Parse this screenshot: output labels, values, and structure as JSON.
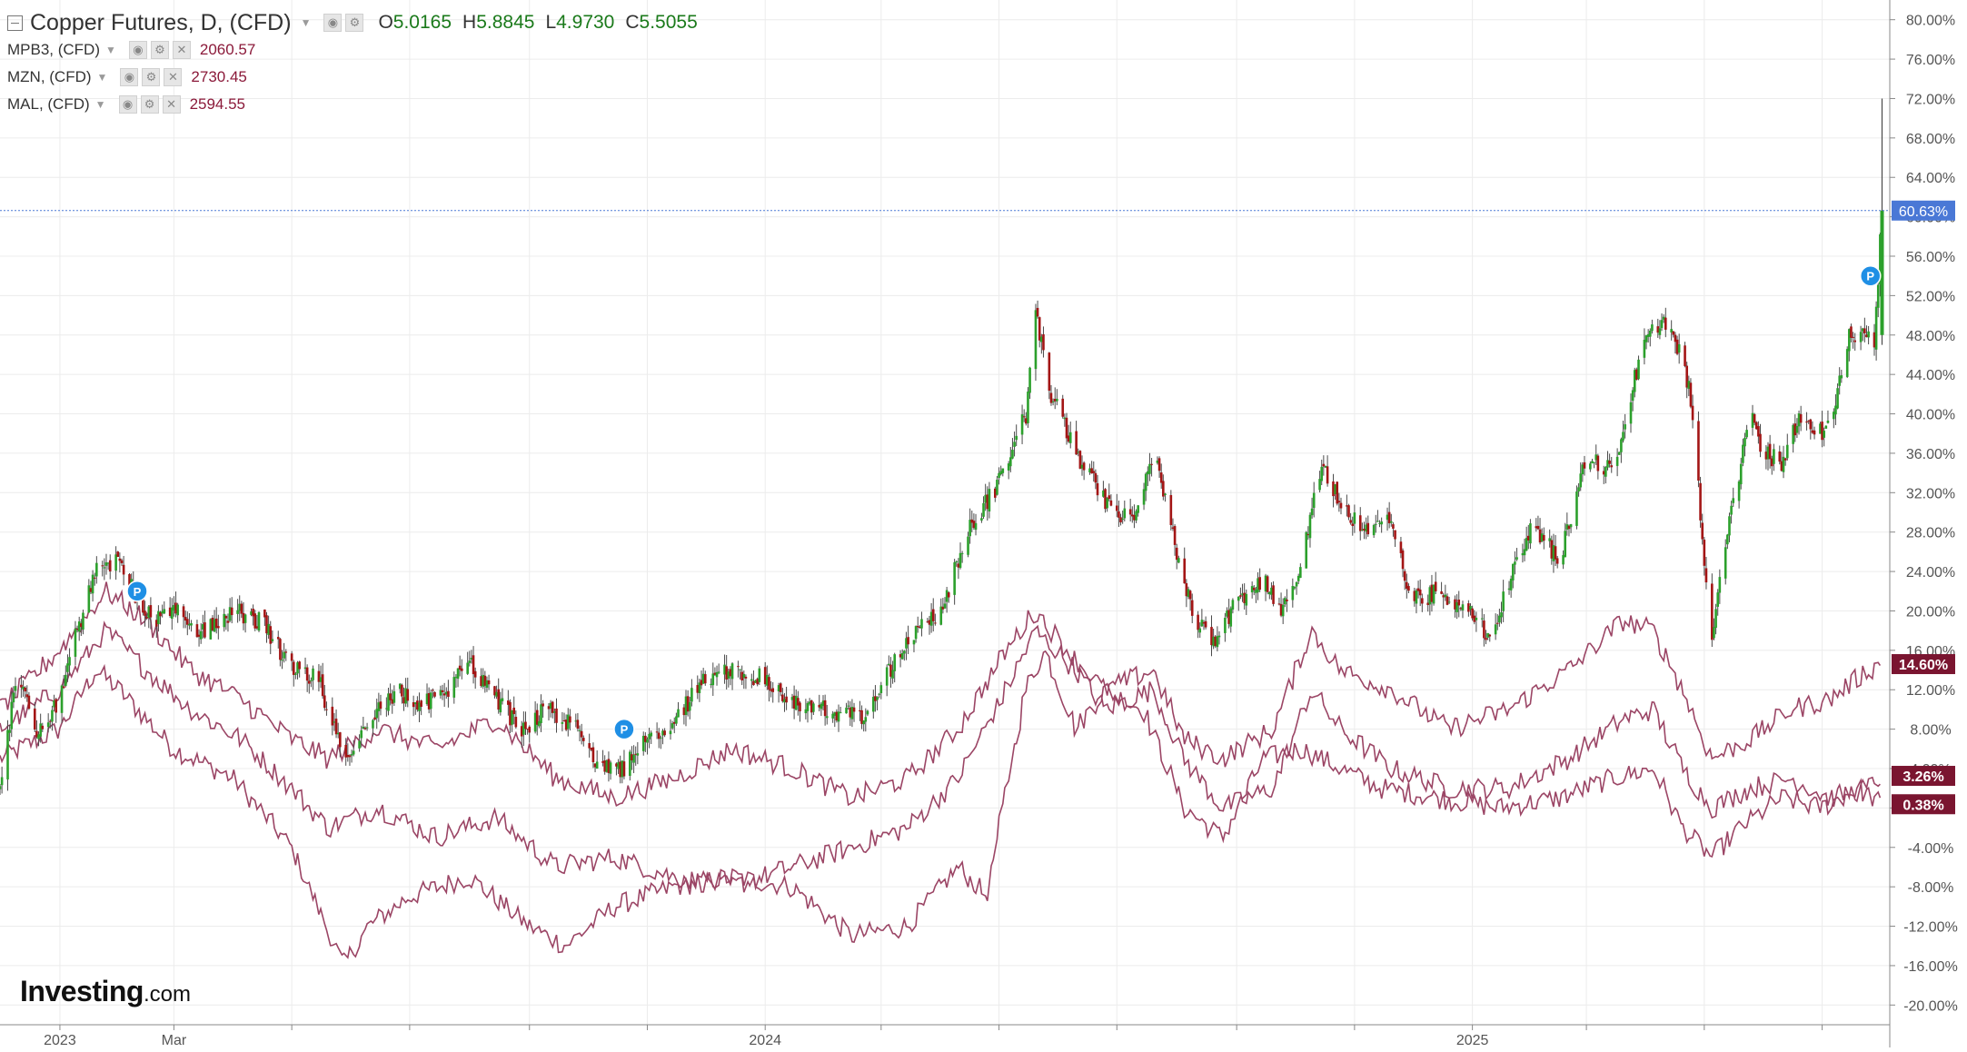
{
  "legend": {
    "main": {
      "title": "Copper Futures, D, (CFD)",
      "open_key": "O",
      "open": "5.0165",
      "high_key": "H",
      "high": "5.8845",
      "low_key": "L",
      "low": "4.9730",
      "close_key": "C",
      "close": "5.5055"
    },
    "subs": [
      {
        "title": "MPB3, (CFD)",
        "value": "2060.57"
      },
      {
        "title": "MZN, (CFD)",
        "value": "2730.45"
      },
      {
        "title": "MAL, (CFD)",
        "value": "2594.55"
      }
    ]
  },
  "logo": {
    "main": "Investing",
    "domain": ".com"
  },
  "colors": {
    "up": "#2ca02c",
    "down": "#a31515",
    "wick": "#4a4a4a",
    "compare": "#9b4565",
    "badge": "#7a1530",
    "price_label": "#4a78d6",
    "grid": "#ececec",
    "axis_text": "#555555",
    "pin": "#1f8fe5"
  },
  "chart_data": {
    "type": "candlestick",
    "y_unit": "%",
    "ylim": [
      -22,
      82
    ],
    "y_ticks": [
      "80.00%",
      "76.00%",
      "72.00%",
      "68.00%",
      "64.00%",
      "60.00%",
      "56.00%",
      "52.00%",
      "48.00%",
      "44.00%",
      "40.00%",
      "36.00%",
      "32.00%",
      "28.00%",
      "24.00%",
      "20.00%",
      "16.00%",
      "12.00%",
      "8.00%",
      "4.00%",
      "0.00%",
      "-4.00%",
      "-8.00%",
      "-12.00%",
      "-16.00%",
      "-20.00%"
    ],
    "x_labels": [
      "2023",
      "Mar",
      "2024",
      "2025"
    ],
    "x_ticks_minor": [
      "2023-01",
      "2023-03",
      "2023-05",
      "2023-07",
      "2023-09",
      "2023-11",
      "2024-01",
      "2024-03",
      "2024-05",
      "2024-07",
      "2024-09",
      "2024-11",
      "2025-01",
      "2025-03",
      "2025-05",
      "2025-07"
    ],
    "x_range": [
      "2022-12-01",
      "2025-08-05"
    ],
    "grid": true,
    "current_value_label": "60.63%",
    "current_value": 60.63,
    "copper_path": [
      [
        "2022-12-01",
        2
      ],
      [
        "2022-12-10",
        14
      ],
      [
        "2022-12-20",
        8
      ],
      [
        "2023-01-01",
        11
      ],
      [
        "2023-01-10",
        18
      ],
      [
        "2023-01-20",
        24
      ],
      [
        "2023-02-01",
        25
      ],
      [
        "2023-02-10",
        21
      ],
      [
        "2023-02-20",
        19
      ],
      [
        "2023-03-01",
        20
      ],
      [
        "2023-03-15",
        18
      ],
      [
        "2023-04-01",
        20
      ],
      [
        "2023-04-15",
        19
      ],
      [
        "2023-05-01",
        14
      ],
      [
        "2023-05-15",
        13
      ],
      [
        "2023-05-28",
        5
      ],
      [
        "2023-06-10",
        9
      ],
      [
        "2023-06-25",
        12
      ],
      [
        "2023-07-05",
        10
      ],
      [
        "2023-07-20",
        12
      ],
      [
        "2023-08-01",
        15
      ],
      [
        "2023-08-15",
        11
      ],
      [
        "2023-08-28",
        8
      ],
      [
        "2023-09-10",
        10
      ],
      [
        "2023-09-25",
        8
      ],
      [
        "2023-10-05",
        5
      ],
      [
        "2023-10-20",
        4
      ],
      [
        "2023-11-01",
        7
      ],
      [
        "2023-11-15",
        9
      ],
      [
        "2023-12-01",
        13
      ],
      [
        "2023-12-15",
        14
      ],
      [
        "2024-01-01",
        13
      ],
      [
        "2024-01-20",
        10
      ],
      [
        "2024-02-05",
        10
      ],
      [
        "2024-02-20",
        9
      ],
      [
        "2024-03-05",
        14
      ],
      [
        "2024-03-20",
        18
      ],
      [
        "2024-04-01",
        20
      ],
      [
        "2024-04-15",
        28
      ],
      [
        "2024-05-01",
        33
      ],
      [
        "2024-05-15",
        40
      ],
      [
        "2024-05-20",
        50
      ],
      [
        "2024-05-28",
        42
      ],
      [
        "2024-06-10",
        36
      ],
      [
        "2024-06-25",
        31
      ],
      [
        "2024-07-10",
        29
      ],
      [
        "2024-07-20",
        36
      ],
      [
        "2024-08-01",
        26
      ],
      [
        "2024-08-10",
        19
      ],
      [
        "2024-08-20",
        17
      ],
      [
        "2024-09-01",
        21
      ],
      [
        "2024-09-15",
        23
      ],
      [
        "2024-09-25",
        20
      ],
      [
        "2024-10-05",
        25
      ],
      [
        "2024-10-15",
        35
      ],
      [
        "2024-10-25",
        31
      ],
      [
        "2024-11-05",
        28
      ],
      [
        "2024-11-20",
        29
      ],
      [
        "2024-12-01",
        21
      ],
      [
        "2024-12-15",
        22
      ],
      [
        "2025-01-01",
        20
      ],
      [
        "2025-01-10",
        17
      ],
      [
        "2025-01-20",
        23
      ],
      [
        "2025-02-01",
        29
      ],
      [
        "2025-02-15",
        25
      ],
      [
        "2025-03-01",
        36
      ],
      [
        "2025-03-15",
        34
      ],
      [
        "2025-03-25",
        43
      ],
      [
        "2025-04-01",
        48
      ],
      [
        "2025-04-10",
        49
      ],
      [
        "2025-04-20",
        46
      ],
      [
        "2025-04-25",
        40
      ],
      [
        "2025-05-01",
        25
      ],
      [
        "2025-05-05",
        18
      ],
      [
        "2025-05-15",
        30
      ],
      [
        "2025-05-25",
        40
      ],
      [
        "2025-06-01",
        36
      ],
      [
        "2025-06-10",
        35
      ],
      [
        "2025-06-20",
        40
      ],
      [
        "2025-07-01",
        38
      ],
      [
        "2025-07-08",
        41
      ],
      [
        "2025-07-15",
        48
      ],
      [
        "2025-07-22",
        48
      ],
      [
        "2025-07-28",
        47
      ],
      [
        "2025-08-01",
        60.63
      ]
    ],
    "series": [
      {
        "values": [
          [
            "2022-12-01",
            5
          ],
          [
            "2023-01-01",
            8
          ],
          [
            "2023-01-20",
            14
          ],
          [
            "2023-02-01",
            12
          ],
          [
            "2023-03-01",
            6
          ],
          [
            "2023-04-01",
            3
          ],
          [
            "2023-05-01",
            -4
          ],
          [
            "2023-05-28",
            -16
          ],
          [
            "2023-06-10",
            -12
          ],
          [
            "2023-07-01",
            -9
          ],
          [
            "2023-08-01",
            -7
          ],
          [
            "2023-09-01",
            -12
          ],
          [
            "2023-09-20",
            -14
          ],
          [
            "2023-10-15",
            -10
          ],
          [
            "2023-11-15",
            -8
          ],
          [
            "2023-12-15",
            -7
          ],
          [
            "2024-01-15",
            -8
          ],
          [
            "2024-02-15",
            -13
          ],
          [
            "2024-03-15",
            -12
          ],
          [
            "2024-04-10",
            -6
          ],
          [
            "2024-04-25",
            -9
          ],
          [
            "2024-05-05",
            2
          ],
          [
            "2024-05-15",
            12
          ],
          [
            "2024-05-25",
            16
          ],
          [
            "2024-06-10",
            8
          ],
          [
            "2024-06-25",
            12
          ],
          [
            "2024-07-15",
            10
          ],
          [
            "2024-08-05",
            0
          ],
          [
            "2024-08-25",
            -3
          ],
          [
            "2024-09-15",
            5
          ],
          [
            "2024-10-05",
            6
          ],
          [
            "2024-10-25",
            4
          ],
          [
            "2024-11-15",
            2
          ],
          [
            "2024-12-15",
            1
          ],
          [
            "2025-01-15",
            0
          ],
          [
            "2025-02-15",
            1
          ],
          [
            "2025-03-15",
            3
          ],
          [
            "2025-04-05",
            4
          ],
          [
            "2025-04-20",
            -2
          ],
          [
            "2025-05-05",
            -5
          ],
          [
            "2025-05-20",
            -2
          ],
          [
            "2025-06-10",
            1
          ],
          [
            "2025-07-01",
            0
          ],
          [
            "2025-07-20",
            2
          ],
          [
            "2025-08-01",
            0.38
          ]
        ]
      },
      {
        "values": [
          [
            "2022-12-01",
            8
          ],
          [
            "2023-01-01",
            12
          ],
          [
            "2023-01-25",
            18
          ],
          [
            "2023-02-15",
            14
          ],
          [
            "2023-03-10",
            10
          ],
          [
            "2023-04-05",
            7
          ],
          [
            "2023-05-01",
            2
          ],
          [
            "2023-05-20",
            -2
          ],
          [
            "2023-06-15",
            0
          ],
          [
            "2023-07-15",
            -3
          ],
          [
            "2023-08-15",
            -1
          ],
          [
            "2023-09-15",
            -6
          ],
          [
            "2023-10-15",
            -5
          ],
          [
            "2023-11-15",
            -7
          ],
          [
            "2023-12-15",
            -8
          ],
          [
            "2024-01-15",
            -6
          ],
          [
            "2024-02-15",
            -4
          ],
          [
            "2024-03-15",
            -2
          ],
          [
            "2024-04-10",
            3
          ],
          [
            "2024-05-05",
            12
          ],
          [
            "2024-05-20",
            18
          ],
          [
            "2024-06-10",
            14
          ],
          [
            "2024-06-25",
            10
          ],
          [
            "2024-07-20",
            12
          ],
          [
            "2024-08-05",
            5
          ],
          [
            "2024-08-25",
            0
          ],
          [
            "2024-09-20",
            2
          ],
          [
            "2024-10-10",
            12
          ],
          [
            "2024-10-25",
            8
          ],
          [
            "2024-11-20",
            4
          ],
          [
            "2024-12-20",
            2
          ],
          [
            "2025-01-20",
            2
          ],
          [
            "2025-02-20",
            5
          ],
          [
            "2025-03-20",
            9
          ],
          [
            "2025-04-05",
            10
          ],
          [
            "2025-04-20",
            4
          ],
          [
            "2025-05-05",
            0
          ],
          [
            "2025-05-25",
            2
          ],
          [
            "2025-06-15",
            3
          ],
          [
            "2025-07-05",
            1
          ],
          [
            "2025-07-25",
            2
          ],
          [
            "2025-08-01",
            3.26
          ]
        ]
      },
      {
        "values": [
          [
            "2022-12-01",
            10
          ],
          [
            "2023-01-01",
            16
          ],
          [
            "2023-01-25",
            22
          ],
          [
            "2023-02-15",
            19
          ],
          [
            "2023-03-10",
            14
          ],
          [
            "2023-04-05",
            11
          ],
          [
            "2023-05-01",
            7
          ],
          [
            "2023-05-20",
            5
          ],
          [
            "2023-06-15",
            8
          ],
          [
            "2023-07-15",
            6
          ],
          [
            "2023-08-15",
            9
          ],
          [
            "2023-09-15",
            3
          ],
          [
            "2023-10-15",
            1
          ],
          [
            "2023-11-15",
            3
          ],
          [
            "2023-12-15",
            6
          ],
          [
            "2024-01-15",
            4
          ],
          [
            "2024-02-15",
            1
          ],
          [
            "2024-03-15",
            3
          ],
          [
            "2024-04-10",
            8
          ],
          [
            "2024-05-05",
            16
          ],
          [
            "2024-05-20",
            20
          ],
          [
            "2024-06-10",
            15
          ],
          [
            "2024-06-25",
            12
          ],
          [
            "2024-07-20",
            14
          ],
          [
            "2024-08-05",
            7
          ],
          [
            "2024-08-25",
            5
          ],
          [
            "2024-09-20",
            8
          ],
          [
            "2024-10-10",
            18
          ],
          [
            "2024-10-25",
            14
          ],
          [
            "2024-11-20",
            12
          ],
          [
            "2024-12-20",
            8
          ],
          [
            "2025-01-20",
            10
          ],
          [
            "2025-02-20",
            14
          ],
          [
            "2025-03-20",
            19
          ],
          [
            "2025-04-05",
            18
          ],
          [
            "2025-04-20",
            12
          ],
          [
            "2025-05-05",
            5
          ],
          [
            "2025-05-25",
            7
          ],
          [
            "2025-06-15",
            10
          ],
          [
            "2025-07-05",
            11
          ],
          [
            "2025-07-25",
            14
          ],
          [
            "2025-08-01",
            14.6
          ]
        ]
      }
    ],
    "end_labels": [
      "14.60%",
      "3.26%",
      "0.38%"
    ],
    "pins": [
      {
        "date": "2023-02-10",
        "value": 22,
        "label": "P"
      },
      {
        "date": "2023-10-20",
        "value": 8,
        "label": "P"
      },
      {
        "date": "2025-07-26",
        "value": 54,
        "label": "P"
      }
    ]
  }
}
